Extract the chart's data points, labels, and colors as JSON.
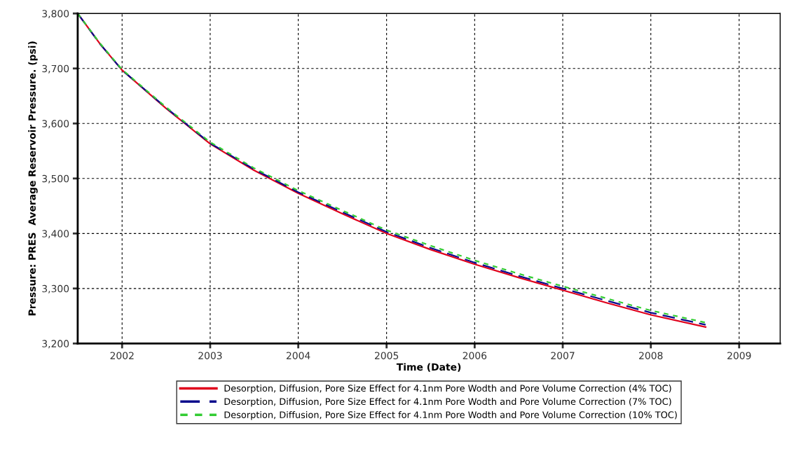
{
  "chart_data": {
    "type": "line",
    "xlabel": "Time (Date)",
    "ylabel": "Pressure: PRES  Average Reservoir Pressure. (psi)",
    "xlim": [
      "2001-07-01",
      "2009-06-20"
    ],
    "ylim": [
      3200,
      3800
    ],
    "xticks": [
      "2002",
      "2003",
      "2004",
      "2005",
      "2006",
      "2007",
      "2008",
      "2009"
    ],
    "yticks": [
      {
        "value": 3200,
        "label": "3,200"
      },
      {
        "value": 3300,
        "label": "3,300"
      },
      {
        "value": 3400,
        "label": "3,400"
      },
      {
        "value": 3500,
        "label": "3,500"
      },
      {
        "value": 3600,
        "label": "3,600"
      },
      {
        "value": 3700,
        "label": "3,700"
      },
      {
        "value": 3800,
        "label": "3,800"
      }
    ],
    "grid": true,
    "legend": "bottom",
    "marker": "none",
    "x": [
      "2001-07-01",
      "2001-10-01",
      "2002-01-01",
      "2002-07-01",
      "2003-01-01",
      "2003-07-01",
      "2004-01-01",
      "2004-07-01",
      "2005-01-01",
      "2005-07-01",
      "2006-01-01",
      "2006-07-01",
      "2007-01-01",
      "2007-07-01",
      "2008-01-01",
      "2008-08-15"
    ],
    "series": [
      {
        "name": "Desorption, Diffusion, Pore Size Effect for 4.1nm Pore Wodth and Pore Volume Correction (4% TOC)",
        "color": "#e0001b",
        "line_style": "solid",
        "values": [
          3800,
          3745,
          3697,
          3628,
          3563,
          3515,
          3473,
          3436,
          3400,
          3371,
          3344,
          3320,
          3297,
          3274,
          3252,
          3230
        ]
      },
      {
        "name": "Desorption, Diffusion, Pore Size Effect for 4.1nm Pore Wodth and Pore Volume Correction (7% TOC)",
        "color": "#0a0a8c",
        "line_style": "dashed",
        "values": [
          3800,
          3745,
          3697,
          3629,
          3564,
          3517,
          3475,
          3439,
          3403,
          3374,
          3347,
          3323,
          3300,
          3278,
          3256,
          3234
        ]
      },
      {
        "name": "Desorption, Diffusion, Pore Size Effect for 4.1nm Pore Wodth and Pore Volume Correction (10% TOC)",
        "color": "#33cc33",
        "line_style": "dotted",
        "values": [
          3800,
          3746,
          3698,
          3630,
          3566,
          3519,
          3478,
          3442,
          3406,
          3378,
          3351,
          3327,
          3304,
          3282,
          3260,
          3238
        ]
      }
    ]
  }
}
